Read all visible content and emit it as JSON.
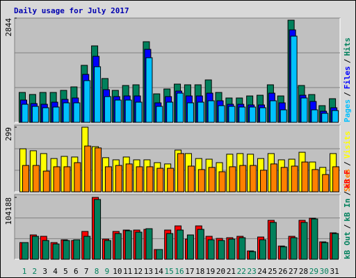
{
  "title": "Daily usage for July 2017",
  "separator": "/",
  "chart_data": [
    {
      "type": "bar",
      "ylim": [
        0,
        2844
      ],
      "yticks": [
        2844
      ],
      "series": [
        {
          "name": "Hits",
          "color": "#00805c",
          "values": [
            815,
            760,
            815,
            815,
            872,
            967,
            1555,
            2086,
            1195,
            872,
            1005,
            1024,
            2199,
            777,
            910,
            1043,
            1024,
            1024,
            1157,
            815,
            664,
            664,
            720,
            739,
            1024,
            720,
            2787,
            1005,
            758,
            455,
            645
          ]
        },
        {
          "name": "Files",
          "color": "#0000ff",
          "values": [
            607,
            512,
            493,
            550,
            626,
            664,
            1308,
            1801,
            891,
            702,
            720,
            720,
            1991,
            531,
            702,
            853,
            720,
            720,
            796,
            588,
            493,
            493,
            474,
            474,
            796,
            531,
            2522,
            739,
            569,
            303,
            398
          ]
        },
        {
          "name": "Pages",
          "color": "#00c0ff",
          "values": [
            493,
            436,
            398,
            417,
            531,
            531,
            1138,
            1517,
            702,
            607,
            607,
            550,
            1763,
            436,
            550,
            796,
            531,
            550,
            588,
            455,
            436,
            417,
            417,
            398,
            588,
            341,
            2351,
            664,
            341,
            246,
            322
          ]
        }
      ]
    },
    {
      "type": "bar",
      "ylim": [
        0,
        299
      ],
      "yticks": [
        299
      ],
      "series": [
        {
          "name": "Visits",
          "color": "#ffff00",
          "values": [
            199,
            190,
            177,
            154,
            164,
            161,
            299,
            209,
            158,
            148,
            161,
            148,
            148,
            135,
            129,
            193,
            177,
            154,
            151,
            135,
            174,
            177,
            174,
            154,
            177,
            148,
            151,
            183,
            138,
            113,
            177
          ]
        },
        {
          "name": "Sites",
          "color": "#ff8000",
          "values": [
            122,
            122,
            96,
            116,
            116,
            135,
            212,
            203,
            116,
            122,
            129,
            116,
            116,
            109,
            109,
            177,
            119,
            103,
            113,
            93,
            116,
            122,
            122,
            100,
            129,
            113,
            119,
            138,
            103,
            80,
            116
          ]
        }
      ]
    },
    {
      "type": "bar",
      "ylim": [
        0,
        104188
      ],
      "yticks": [
        104188
      ],
      "categories": [
        "1",
        "2",
        "3",
        "4",
        "5",
        "6",
        "7",
        "8",
        "9",
        "10",
        "11",
        "12",
        "13",
        "14",
        "15",
        "16",
        "17",
        "18",
        "19",
        "20",
        "21",
        "22",
        "23",
        "24",
        "25",
        "26",
        "27",
        "28",
        "29",
        "30",
        "31"
      ],
      "category_colors": [
        "#00805c",
        "#00805c",
        "#000000",
        "#000000",
        "#000000",
        "#000000",
        "#000000",
        "#00805c",
        "#00805c",
        "#000000",
        "#000000",
        "#000000",
        "#000000",
        "#000000",
        "#00805c",
        "#00805c",
        "#000000",
        "#000000",
        "#000000",
        "#000000",
        "#000000",
        "#00805c",
        "#00805c",
        "#000000",
        "#000000",
        "#000000",
        "#000000",
        "#000000",
        "#00805c",
        "#00805c",
        "#000000"
      ],
      "series": [
        {
          "name": "kB F",
          "color": "#ff0000",
          "values": [
            28096,
            40973,
            38632,
            28096,
            32778,
            31608,
            46826,
            104188,
            33949,
            46826,
            49167,
            49167,
            50338,
            16390,
            49167,
            56191,
            33949,
            56191,
            38632,
            35120,
            36290,
            38632,
            14048,
            37461,
            65557,
            22243,
            38632,
            65557,
            69069,
            29267,
            44485
          ]
        },
        {
          "name": "kB In",
          "color": "#00805c",
          "values": [
            28096,
            38632,
            31608,
            25754,
            31608,
            32778,
            38632,
            100676,
            31608,
            43314,
            47997,
            45655,
            51509,
            16390,
            43314,
            49167,
            40973,
            50338,
            32778,
            31608,
            33949,
            36290,
            12877,
            32778,
            62045,
            21072,
            36290,
            62045,
            67898,
            28096,
            43314
          ]
        }
      ],
      "legend_extra": {
        "name": "kB Out",
        "color": "#00805c"
      }
    }
  ]
}
